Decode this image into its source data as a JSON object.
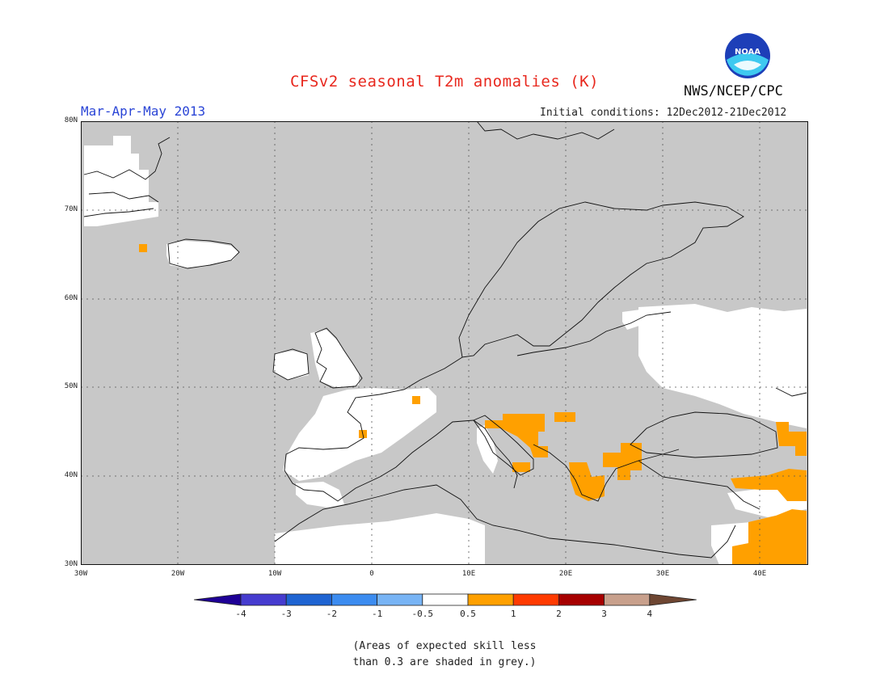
{
  "header": {
    "title": "CFSv2 seasonal T2m anomalies (K)",
    "agency": "NWS/NCEP/CPC",
    "logo_text": "NOAA",
    "season": "Mar-Apr-May 2013",
    "initial_conditions": "Initial conditions: 12Dec2012-21Dec2012"
  },
  "map": {
    "region": "Europe",
    "lon_range": [
      -30,
      45
    ],
    "lat_range": [
      30,
      80
    ],
    "lat_labels": [
      "80N",
      "70N",
      "60N",
      "50N",
      "40N",
      "30N"
    ],
    "lon_labels": [
      "30W",
      "20W",
      "10W",
      "0",
      "10E",
      "20E",
      "30E",
      "40E"
    ],
    "colors": {
      "grey_skill": "#c8c8c8",
      "neutral": "#ffffff",
      "warm1": "#ffa000"
    }
  },
  "legend": {
    "labels": [
      "-4",
      "-3",
      "-2",
      "-1",
      "-0.5",
      "0.5",
      "1",
      "2",
      "3",
      "4"
    ],
    "colors": [
      "#1e0096",
      "#463ccf",
      "#1f64d2",
      "#3c8cf0",
      "#78b4f5",
      "#ffffff",
      "#ffa000",
      "#ff3a00",
      "#a60000",
      "#c8a08c",
      "#6e4632"
    ]
  },
  "footnote": {
    "line1": "(Areas of expected skill less",
    "line2": "than 0.3 are shaded in grey.)"
  }
}
